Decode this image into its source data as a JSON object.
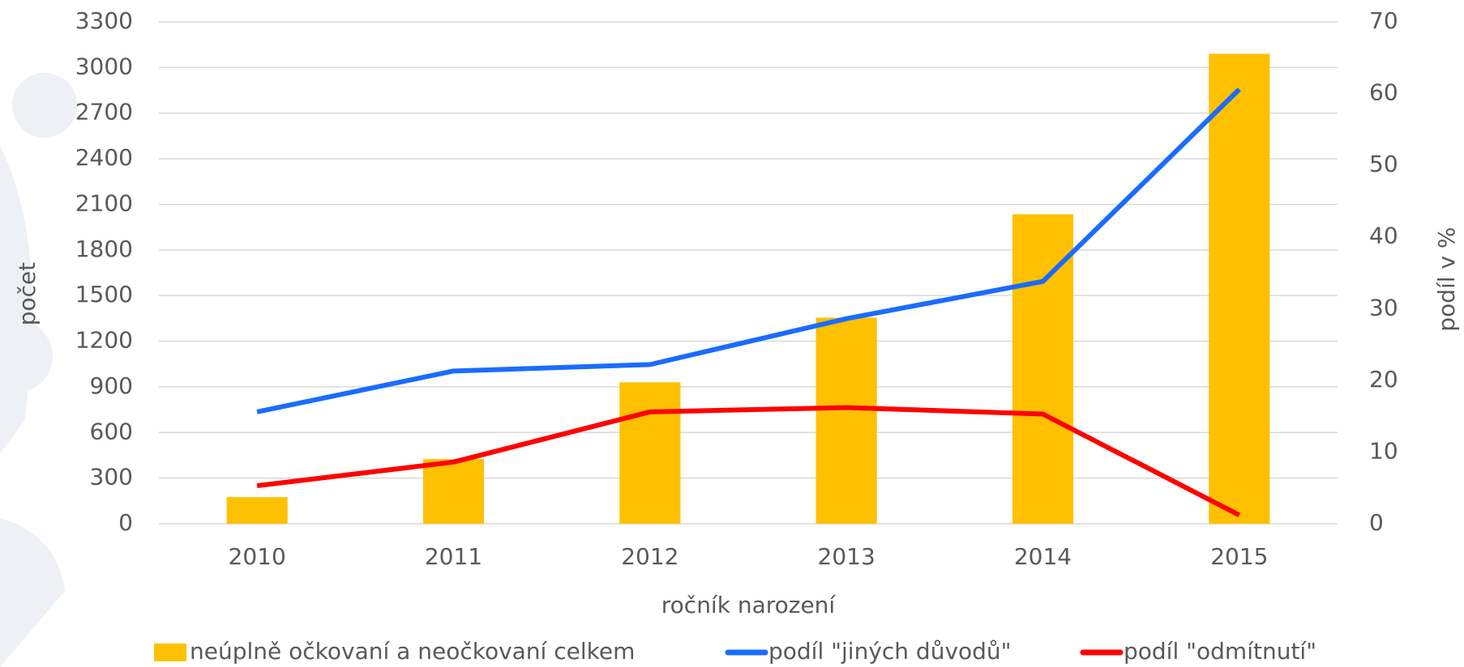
{
  "chart_data": {
    "type": "bar",
    "categories": [
      "2010",
      "2011",
      "2012",
      "2013",
      "2014",
      "2015"
    ],
    "x_label": "ročník narození",
    "y_label": "počet",
    "y2_label": "podíl v %",
    "ylim": [
      0,
      3300
    ],
    "yticks": [
      0,
      300,
      600,
      900,
      1200,
      1500,
      1800,
      2100,
      2400,
      2700,
      3000,
      3300
    ],
    "y2lim": [
      0,
      70
    ],
    "y2ticks": [
      0,
      10,
      20,
      30,
      40,
      50,
      60,
      70
    ],
    "grid": true,
    "legend": "bottom",
    "series": [
      {
        "name": "neúplně očkovaní a neočkovaní celkem",
        "type": "bar",
        "color": "#ffc000",
        "values": [
          175,
          425,
          930,
          1355,
          2035,
          3090
        ]
      },
      {
        "name": "podíl \"jiných důvodů\"",
        "type": "line",
        "axis": "y2",
        "color": "#1a6cff",
        "values": [
          15.6,
          21.3,
          22.2,
          28.6,
          33.8,
          60.6
        ]
      },
      {
        "name": "podíl \"odmítnutí\"",
        "type": "line",
        "axis": "y2",
        "color": "#ff0000",
        "values": [
          5.3,
          8.6,
          15.6,
          16.2,
          15.3,
          1.2
        ]
      }
    ]
  }
}
